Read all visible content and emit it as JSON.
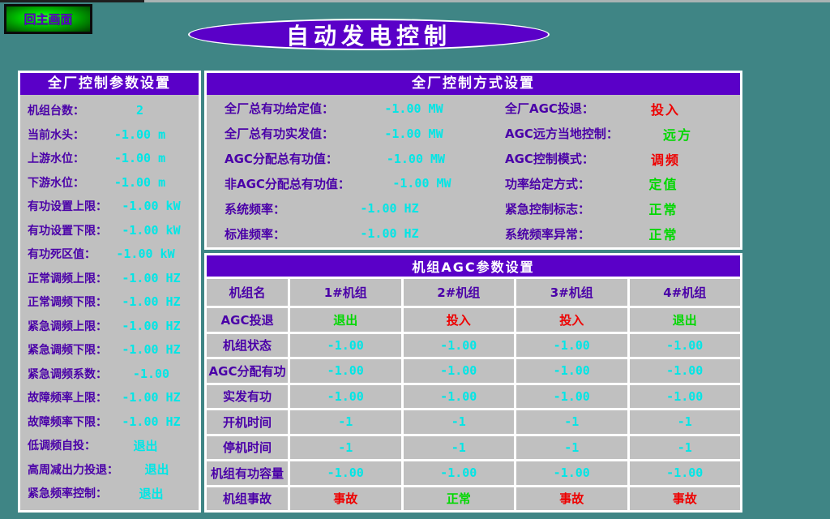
{
  "back_button": {
    "label": "回主画面"
  },
  "title": "自动发电控制",
  "colors": {
    "background_teal": "#3f8585",
    "panel_gray": "#c0c0c0",
    "accent_purple": "#5a00c8",
    "label_purple": "#4a00a8",
    "value_cyan": "#00e6e6",
    "status_green": "#00d800",
    "status_red": "#ee0000"
  },
  "left_panel": {
    "header": "全厂控制参数设置",
    "rows": [
      {
        "label": "机组台数：",
        "value": "2",
        "color": "cyan"
      },
      {
        "label": "当前水头：",
        "value": "-1.00 m",
        "color": "cyan"
      },
      {
        "label": "上游水位：",
        "value": "-1.00 m",
        "color": "cyan"
      },
      {
        "label": "下游水位：",
        "value": "-1.00 m",
        "color": "cyan"
      },
      {
        "label": "有功设置上限：",
        "value": "-1.00 kW",
        "color": "cyan"
      },
      {
        "label": "有功设置下限：",
        "value": "-1.00 kW",
        "color": "cyan"
      },
      {
        "label": "有功死区值：",
        "value": "-1.00 kW",
        "color": "cyan"
      },
      {
        "label": "正常调频上限：",
        "value": "-1.00 HZ",
        "color": "cyan"
      },
      {
        "label": "正常调频下限：",
        "value": "-1.00 HZ",
        "color": "cyan"
      },
      {
        "label": "紧急调频上限：",
        "value": "-1.00 HZ",
        "color": "cyan"
      },
      {
        "label": "紧急调频下限：",
        "value": "-1.00 HZ",
        "color": "cyan"
      },
      {
        "label": "紧急调频系数：",
        "value": "-1.00",
        "color": "cyan"
      },
      {
        "label": "故障频率上限：",
        "value": "-1.00 HZ",
        "color": "cyan"
      },
      {
        "label": "故障频率下限：",
        "value": "-1.00 HZ",
        "color": "cyan"
      },
      {
        "label": "低调频自投：",
        "value": "退出",
        "color": "cyan"
      },
      {
        "label": "高周减出力投退：",
        "value": "退出",
        "color": "cyan"
      },
      {
        "label": "紧急频率控制：",
        "value": "退出",
        "color": "cyan"
      }
    ]
  },
  "mode_panel": {
    "header": "全厂控制方式设置",
    "left_rows": [
      {
        "label": "全厂总有功给定值：",
        "value": "-1.00 MW",
        "color": "cyan"
      },
      {
        "label": "全厂总有功实发值：",
        "value": "-1.00 MW",
        "color": "cyan"
      },
      {
        "label": "AGC分配总有功值：",
        "value": "-1.00 MW",
        "color": "cyan"
      },
      {
        "label": "非AGC分配总有功值：",
        "value": "-1.00 MW",
        "color": "cyan"
      },
      {
        "label": "系统频率：",
        "value": "-1.00 HZ",
        "color": "cyan"
      },
      {
        "label": "标准频率：",
        "value": "-1.00 HZ",
        "color": "cyan"
      }
    ],
    "right_rows": [
      {
        "label": "全厂AGC投退：",
        "value": "投入",
        "color": "red"
      },
      {
        "label": "AGC远方当地控制：",
        "value": "远方",
        "color": "green"
      },
      {
        "label": "AGC控制模式：",
        "value": "调频",
        "color": "red"
      },
      {
        "label": "功率给定方式：",
        "value": "定值",
        "color": "green"
      },
      {
        "label": "紧急控制标志：",
        "value": "正常",
        "color": "green"
      },
      {
        "label": "系统频率异常：",
        "value": "正常",
        "color": "green"
      }
    ]
  },
  "unit_table": {
    "header": "机组AGC参数设置",
    "columns": [
      "机组名",
      "1#机组",
      "2#机组",
      "3#机组",
      "4#机组"
    ],
    "rows": [
      {
        "label": "AGC投退",
        "values": [
          "退出",
          "投入",
          "投入",
          "退出"
        ],
        "colors": [
          "green",
          "red",
          "red",
          "green"
        ],
        "numeric": false
      },
      {
        "label": "机组状态",
        "values": [
          "-1.00",
          "-1.00",
          "-1.00",
          "-1.00"
        ],
        "colors": [
          "cyan",
          "cyan",
          "cyan",
          "cyan"
        ],
        "numeric": true
      },
      {
        "label": "AGC分配有功",
        "values": [
          "-1.00",
          "-1.00",
          "-1.00",
          "-1.00"
        ],
        "colors": [
          "cyan",
          "cyan",
          "cyan",
          "cyan"
        ],
        "numeric": true
      },
      {
        "label": "实发有功",
        "values": [
          "-1.00",
          "-1.00",
          "-1.00",
          "-1.00"
        ],
        "colors": [
          "cyan",
          "cyan",
          "cyan",
          "cyan"
        ],
        "numeric": true
      },
      {
        "label": "开机时间",
        "values": [
          "-1",
          "-1",
          "-1",
          "-1"
        ],
        "colors": [
          "cyan",
          "cyan",
          "cyan",
          "cyan"
        ],
        "numeric": true
      },
      {
        "label": "停机时间",
        "values": [
          "-1",
          "-1",
          "-1",
          "-1"
        ],
        "colors": [
          "cyan",
          "cyan",
          "cyan",
          "cyan"
        ],
        "numeric": true
      },
      {
        "label": "机组有功容量",
        "values": [
          "-1.00",
          "-1.00",
          "-1.00",
          "-1.00"
        ],
        "colors": [
          "cyan",
          "cyan",
          "cyan",
          "cyan"
        ],
        "numeric": true
      },
      {
        "label": "机组事故",
        "values": [
          "事故",
          "正常",
          "事故",
          "事故"
        ],
        "colors": [
          "red",
          "green",
          "red",
          "red"
        ],
        "numeric": false
      }
    ]
  }
}
